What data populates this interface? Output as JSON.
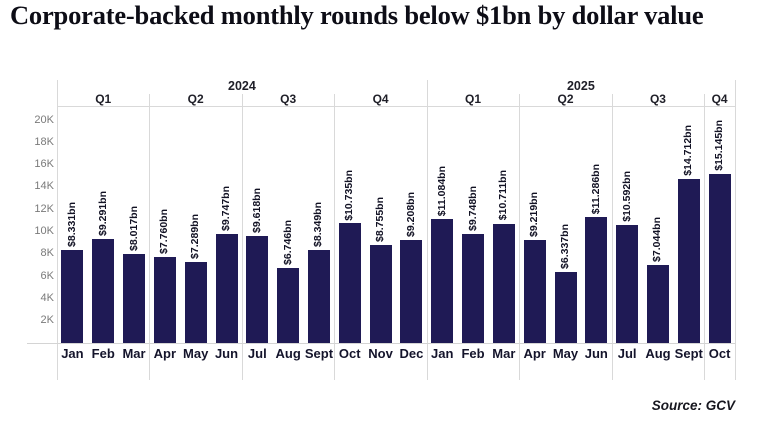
{
  "title": "Corporate-backed monthly rounds below $1bn by dollar value",
  "source": "Source: GCV",
  "colors": {
    "bar": "#1f1a55",
    "grid": "#d9d9d9",
    "axis_text": "#7a7a7a",
    "label_text": "#121224",
    "background": "#ffffff"
  },
  "chart_data": {
    "type": "bar",
    "title": "Corporate-backed monthly rounds below $1bn by dollar value",
    "xlabel": "",
    "ylabel": "",
    "ylim": [
      0,
      21300
    ],
    "grid": "vertical-quarter-separators-only",
    "legend": "none",
    "y_tick_labels": [
      "2K",
      "4K",
      "6K",
      "8K",
      "10K",
      "12K",
      "14K",
      "16K",
      "18K",
      "20K"
    ],
    "y_tick_values": [
      2000,
      4000,
      6000,
      8000,
      10000,
      12000,
      14000,
      16000,
      18000,
      20000
    ],
    "years": [
      {
        "label": "2024",
        "months": 12
      },
      {
        "label": "2025",
        "months": 10
      }
    ],
    "quarters": [
      {
        "label": "Q1",
        "months": 3
      },
      {
        "label": "Q2",
        "months": 3
      },
      {
        "label": "Q3",
        "months": 3
      },
      {
        "label": "Q4",
        "months": 3
      },
      {
        "label": "Q1",
        "months": 3
      },
      {
        "label": "Q2",
        "months": 3
      },
      {
        "label": "Q3",
        "months": 3
      },
      {
        "label": "Q4",
        "months": 1
      }
    ],
    "categories": [
      "Jan",
      "Feb",
      "Mar",
      "Apr",
      "May",
      "Jun",
      "Jul",
      "Aug",
      "Sept",
      "Oct",
      "Nov",
      "Dec",
      "Jan",
      "Feb",
      "Mar",
      "Apr",
      "May",
      "Jun",
      "Jul",
      "Aug",
      "Sept",
      "Oct"
    ],
    "values": [
      8331,
      9291,
      8017,
      7760,
      7289,
      9747,
      9618,
      6746,
      8349,
      10735,
      8755,
      9208,
      11084,
      9748,
      10711,
      9219,
      6337,
      11286,
      10592,
      7044,
      14712,
      15145
    ],
    "bar_labels": [
      "$8.331bn",
      "$9.291bn",
      "$8.017bn",
      "$7.760bn",
      "$7.289bn",
      "$9.747bn",
      "$9.618bn",
      "$6.746bn",
      "$8.349bn",
      "$10.735bn",
      "$8.755bn",
      "$9.208bn",
      "$11.084bn",
      "$9.748bn",
      "$10.711bn",
      "$9.219bn",
      "$6.337bn",
      "$11.286bn",
      "$10.592bn",
      "$7.044bn",
      "$14.712bn",
      "$15.145bn"
    ]
  }
}
